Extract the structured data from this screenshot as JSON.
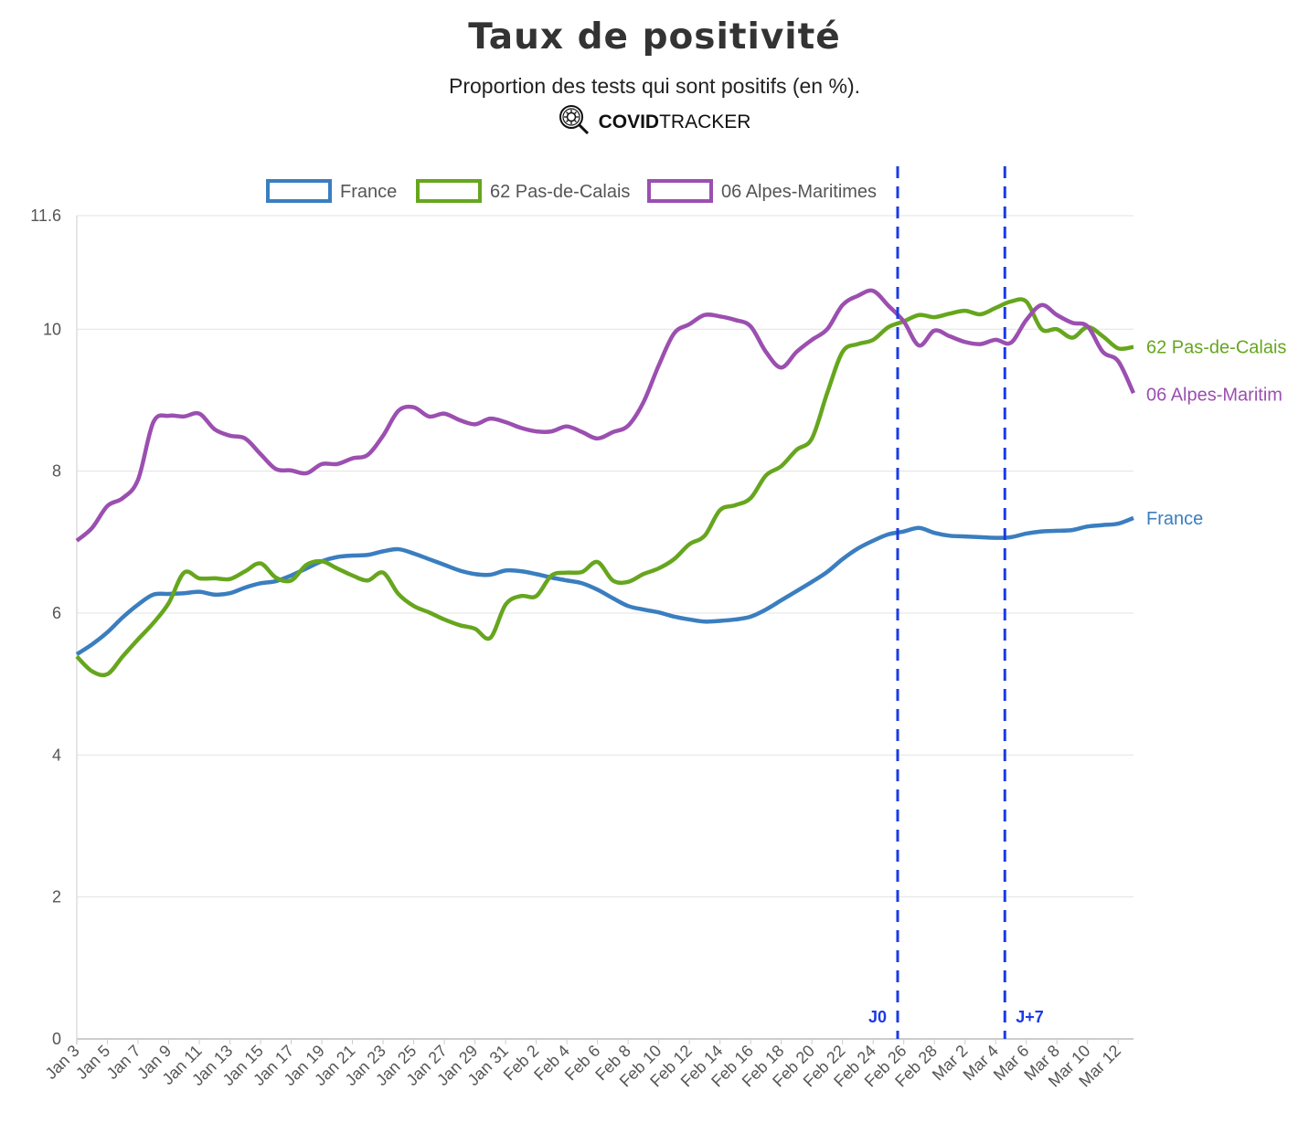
{
  "title": "Taux de positivité",
  "subtitle": "Proportion des tests qui sont positifs (en %).",
  "brand": {
    "bold": "COVID",
    "regular": "TRACKER",
    "icon": "virus-magnifier-icon"
  },
  "chart_data": {
    "type": "line",
    "title": "Taux de positivité",
    "subtitle": "Proportion des tests qui sont positifs (en %).",
    "xlabel": "",
    "ylabel": "",
    "ylim": [
      0,
      11.6
    ],
    "yticks": [
      "0",
      "2",
      "4",
      "6",
      "8",
      "10",
      "11.6"
    ],
    "ytick_values": [
      0,
      2,
      4,
      6,
      8,
      10,
      11.6
    ],
    "x_start": "Jan 3",
    "n_points": 70,
    "tick_labels": [
      "Jan 3",
      "Jan 5",
      "Jan 7",
      "Jan 9",
      "Jan 11",
      "Jan 13",
      "Jan 15",
      "Jan 17",
      "Jan 19",
      "Jan 21",
      "Jan 23",
      "Jan 25",
      "Jan 27",
      "Jan 29",
      "Jan 31",
      "Feb 2",
      "Feb 4",
      "Feb 6",
      "Feb 8",
      "Feb 10",
      "Feb 12",
      "Feb 14",
      "Feb 16",
      "Feb 18",
      "Feb 20",
      "Feb 22",
      "Feb 24",
      "Feb 26",
      "Feb 28",
      "Mar 2",
      "Mar 4",
      "Mar 6",
      "Mar 8",
      "Mar 10",
      "Mar 12"
    ],
    "grid": true,
    "legend_position": "top",
    "series": [
      {
        "name": "France",
        "end_label": "France",
        "color": "#3a7ebf",
        "values": [
          5.42,
          5.56,
          5.73,
          5.94,
          6.12,
          6.26,
          6.27,
          6.28,
          6.3,
          6.26,
          6.28,
          6.36,
          6.42,
          6.45,
          6.53,
          6.63,
          6.73,
          6.79,
          6.81,
          6.82,
          6.87,
          6.9,
          6.84,
          6.76,
          6.68,
          6.6,
          6.55,
          6.54,
          6.6,
          6.59,
          6.55,
          6.5,
          6.46,
          6.42,
          6.33,
          6.21,
          6.1,
          6.05,
          6.01,
          5.95,
          5.91,
          5.88,
          5.89,
          5.91,
          5.95,
          6.05,
          6.18,
          6.31,
          6.44,
          6.58,
          6.76,
          6.91,
          7.02,
          7.11,
          7.15,
          7.2,
          7.13,
          7.09,
          7.08,
          7.07,
          7.06,
          7.07,
          7.12,
          7.15,
          7.16,
          7.17,
          7.22,
          7.24,
          7.26,
          7.34
        ]
      },
      {
        "name": "62 Pas-de-Calais",
        "end_label": "62 Pas-de-Calais",
        "color": "#66a61e",
        "values": [
          5.39,
          5.18,
          5.14,
          5.39,
          5.63,
          5.86,
          6.14,
          6.57,
          6.49,
          6.49,
          6.48,
          6.59,
          6.7,
          6.5,
          6.46,
          6.68,
          6.73,
          6.63,
          6.53,
          6.46,
          6.57,
          6.27,
          6.1,
          6.01,
          5.91,
          5.83,
          5.78,
          5.65,
          6.12,
          6.24,
          6.24,
          6.53,
          6.57,
          6.58,
          6.72,
          6.46,
          6.44,
          6.55,
          6.63,
          6.76,
          6.97,
          7.09,
          7.45,
          7.52,
          7.62,
          7.94,
          8.07,
          8.3,
          8.46,
          9.1,
          9.68,
          9.79,
          9.85,
          10.03,
          10.11,
          10.2,
          10.17,
          10.22,
          10.26,
          10.21,
          10.3,
          10.39,
          10.39,
          10.0,
          10.0,
          9.88,
          10.03,
          9.9,
          9.73,
          9.75
        ]
      },
      {
        "name": "06 Alpes-Maritimes",
        "end_label": "06 Alpes-Maritim",
        "color": "#9b4fb0",
        "values": [
          7.02,
          7.2,
          7.51,
          7.62,
          7.88,
          8.69,
          8.78,
          8.77,
          8.81,
          8.59,
          8.5,
          8.46,
          8.24,
          8.03,
          8.01,
          7.97,
          8.1,
          8.1,
          8.18,
          8.23,
          8.5,
          8.85,
          8.9,
          8.77,
          8.81,
          8.72,
          8.66,
          8.74,
          8.69,
          8.61,
          8.56,
          8.56,
          8.63,
          8.55,
          8.46,
          8.55,
          8.64,
          8.97,
          9.49,
          9.94,
          10.07,
          10.2,
          10.18,
          10.13,
          10.04,
          9.68,
          9.46,
          9.68,
          9.85,
          10.0,
          10.34,
          10.47,
          10.54,
          10.33,
          10.11,
          9.77,
          9.98,
          9.9,
          9.82,
          9.79,
          9.85,
          9.81,
          10.13,
          10.34,
          10.2,
          10.09,
          10.04,
          9.68,
          9.55,
          9.1
        ]
      }
    ],
    "annotations": [
      {
        "label": "J0",
        "x_index": 53.6,
        "color": "#1a3be6",
        "style": "dashed"
      },
      {
        "label": "J+7",
        "x_index": 60.6,
        "color": "#1a3be6",
        "style": "dashed"
      }
    ]
  }
}
